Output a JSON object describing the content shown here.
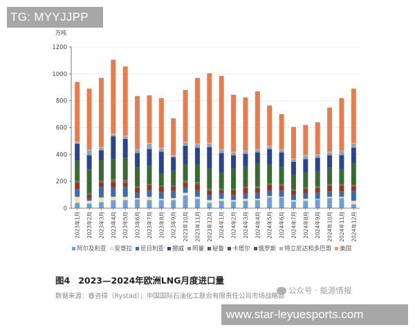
{
  "watermarks": {
    "top": "TG: MYYJJPP",
    "bottom": "www.star-leyuesports.com",
    "wechat": "公众号 · 能源情报"
  },
  "figure": {
    "number": "图4",
    "title": "2023—2024年欧洲LNG月度进口量",
    "source": "数据来源：睿咨得（Rystad）；中国国际石油化工联合有限责任公司市场战略部"
  },
  "chart_data": {
    "type": "bar",
    "stacked": true,
    "title": "2023—2024年欧洲LNG月度进口量",
    "ylabel": "万吨",
    "xlabel": "",
    "ylim": [
      0,
      1200
    ],
    "yticks": [
      0,
      200,
      400,
      600,
      800,
      1000,
      1200
    ],
    "grid": true,
    "legend_position": "bottom",
    "categories": [
      "2023年1月",
      "2023年2月",
      "2023年3月",
      "2023年4月",
      "2023年5月",
      "2023年6月",
      "2023年7月",
      "2023年8月",
      "2023年9月",
      "2023年10月",
      "2023年11月",
      "2023年12月",
      "2024年1月",
      "2024年2月",
      "2024年3月",
      "2024年4月",
      "2024年5月",
      "2024年6月",
      "2024年7月",
      "2024年8月",
      "2024年9月",
      "2024年10月",
      "2024年11月",
      "2024年12月"
    ],
    "series": [
      {
        "name": "阿尔及利亚",
        "color": "#6f9fd6",
        "values": [
          40,
          35,
          45,
          60,
          60,
          65,
          60,
          60,
          60,
          95,
          70,
          40,
          55,
          50,
          55,
          60,
          80,
          80,
          50,
          55,
          65,
          75,
          75,
          30
        ]
      },
      {
        "name": "安哥拉",
        "color": "#efe3b0",
        "values": [
          45,
          20,
          35,
          25,
          25,
          10,
          25,
          10,
          15,
          20,
          15,
          20,
          15,
          10,
          15,
          10,
          10,
          5,
          10,
          15,
          5,
          10,
          10,
          25
        ]
      },
      {
        "name": "尼日利亚",
        "color": "#3f6ba8",
        "values": [
          55,
          20,
          80,
          70,
          75,
          40,
          50,
          50,
          55,
          40,
          50,
          40,
          40,
          40,
          40,
          45,
          40,
          45,
          40,
          40,
          45,
          40,
          40,
          75
        ]
      },
      {
        "name": "挪威",
        "color": "#8b3a2a",
        "values": [
          50,
          25,
          30,
          40,
          30,
          35,
          35,
          40,
          30,
          35,
          40,
          30,
          25,
          35,
          40,
          35,
          40,
          35,
          30,
          35,
          35,
          40,
          40,
          30
        ]
      },
      {
        "name": "阿曼",
        "color": "#7d6a4a",
        "values": [
          15,
          10,
          15,
          20,
          20,
          15,
          10,
          10,
          10,
          15,
          20,
          15,
          10,
          10,
          10,
          15,
          15,
          15,
          10,
          10,
          15,
          15,
          15,
          15
        ]
      },
      {
        "name": "秘鲁",
        "color": "#3c6836",
        "values": [
          150,
          180,
          150,
          150,
          165,
          140,
          135,
          90,
          110,
          120,
          130,
          150,
          120,
          150,
          150,
          170,
          140,
          125,
          110,
          110,
          110,
          120,
          110,
          160
        ]
      },
      {
        "name": "卡塔尔",
        "color": "#2e4585",
        "values": [
          125,
          105,
          75,
          170,
          140,
          105,
          125,
          160,
          100,
          140,
          125,
          160,
          145,
          100,
          95,
          80,
          115,
          110,
          95,
          100,
          100,
          95,
          105,
          115
        ]
      },
      {
        "name": "俄罗斯",
        "color": "#8aa4b8",
        "values": [
          10,
          35,
          20,
          15,
          20,
          25,
          40,
          25,
          10,
          25,
          25,
          25,
          25,
          20,
          20,
          20,
          20,
          20,
          20,
          25,
          20,
          20,
          30,
          30
        ]
      },
      {
        "name": "特立尼达和多巴哥",
        "color": "#b8c2cc",
        "values": [
          5,
          5,
          5,
          5,
          5,
          5,
          5,
          5,
          5,
          5,
          5,
          5,
          5,
          5,
          5,
          5,
          5,
          5,
          5,
          5,
          5,
          5,
          5,
          5
        ]
      },
      {
        "name": "美国",
        "color": "#e27e52",
        "values": [
          445,
          455,
          515,
          550,
          515,
          395,
          355,
          370,
          275,
          385,
          490,
          520,
          545,
          425,
          395,
          430,
          300,
          260,
          235,
          225,
          240,
          330,
          390,
          405
        ]
      }
    ],
    "totals": [
      940,
      890,
      970,
      1105,
      1055,
      835,
      840,
      820,
      670,
      880,
      970,
      1005,
      985,
      845,
      825,
      870,
      765,
      700,
      605,
      620,
      640,
      750,
      820,
      890
    ]
  },
  "legend": [
    {
      "label": "阿尔及利亚",
      "color": "#6f9fd6"
    },
    {
      "label": "安哥拉",
      "color": "#efe3b0"
    },
    {
      "label": "尼日利亚",
      "color": "#3f6ba8"
    },
    {
      "label": "挪威",
      "color": "#2e4585"
    },
    {
      "label": "阿曼",
      "color": "#7d8fb0"
    },
    {
      "label": "秘鲁",
      "color": "#3c6836"
    },
    {
      "label": "卡塔尔",
      "color": "#3c4f7a"
    },
    {
      "label": "俄罗斯",
      "color": "#3a5a9c"
    },
    {
      "label": "特立尼达和多巴哥",
      "color": "#a9b8c8"
    },
    {
      "label": "美国",
      "color": "#e49a6a"
    }
  ]
}
